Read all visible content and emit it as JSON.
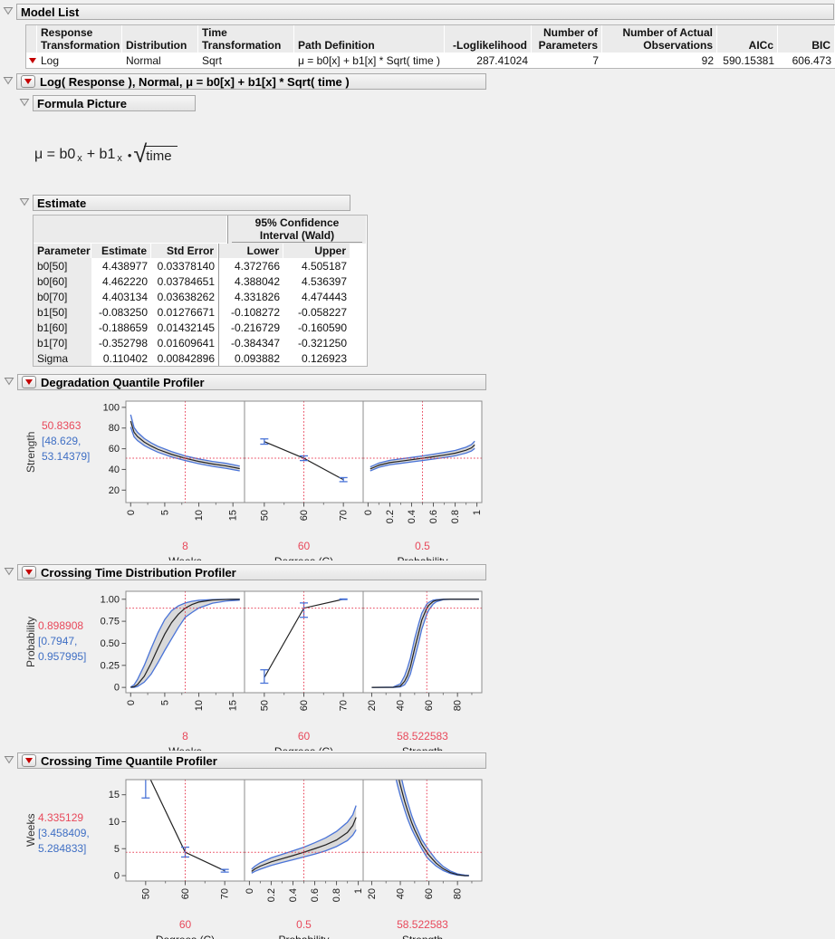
{
  "colors": {
    "accent_red": "#e8364e",
    "text_red": "#e8495b",
    "text_blue": "#3f6fc4",
    "band_edge_blue": "#4a74d8",
    "band_fill": "#d9d9d9",
    "curve_black": "#222222",
    "panel_border": "#8c8c8c"
  },
  "icons": {
    "disclosure": "open-triangle-down",
    "menu_button": "red-triangle-menu"
  },
  "model_list": {
    "title": "Model List",
    "columns": [
      {
        "l1": "Response",
        "l2": "Transformation"
      },
      {
        "l1": "",
        "l2": "Distribution"
      },
      {
        "l1": "Time",
        "l2": "Transformation"
      },
      {
        "l1": "",
        "l2": "Path Definition"
      },
      {
        "l1": "",
        "l2": "-Loglikelihood"
      },
      {
        "l1": "Number of",
        "l2": "Parameters"
      },
      {
        "l1": "Number of Actual",
        "l2": "Observations"
      },
      {
        "l1": "",
        "l2": "AICc"
      },
      {
        "l1": "",
        "l2": "BIC"
      }
    ],
    "row": [
      "Log",
      "Normal",
      "Sqrt",
      "μ = b0[x] + b1[x] * Sqrt( time )",
      "287.41024",
      "7",
      "92",
      "590.15381",
      "606.473"
    ]
  },
  "model_section": {
    "title": "Log( Response ), Normal, μ = b0[x] + b1[x] * Sqrt( time )"
  },
  "formula_picture": {
    "title": "Formula Picture",
    "formula": {
      "mu_eq": "μ = b0",
      "sub_x1": "x",
      "plus_b1": "+ b1",
      "sub_x2": "x",
      "dot": "•",
      "radical": "√",
      "radicand": "time"
    }
  },
  "estimate": {
    "title": "Estimate",
    "ci_header_line1": "95% Confidence",
    "ci_header_line2": "Interval (Wald)",
    "columns": [
      "Parameter",
      "Estimate",
      "Std Error",
      "Lower",
      "Upper"
    ],
    "rows": [
      [
        "b0[50]",
        "4.438977",
        "0.03378140",
        "4.372766",
        "4.505187"
      ],
      [
        "b0[60]",
        "4.462220",
        "0.03784651",
        "4.388042",
        "4.536397"
      ],
      [
        "b0[70]",
        "4.403134",
        "0.03638262",
        "4.331826",
        "4.474443"
      ],
      [
        "b1[50]",
        "-0.083250",
        "0.01276671",
        "-0.108272",
        "-0.058227"
      ],
      [
        "b1[60]",
        "-0.188659",
        "0.01432145",
        "-0.216729",
        "-0.160590"
      ],
      [
        "b1[70]",
        "-0.352798",
        "0.01609641",
        "-0.384347",
        "-0.321250"
      ],
      [
        "Sigma",
        "0.110402",
        "0.00842896",
        "0.093882",
        "0.126923"
      ]
    ]
  },
  "chart_data": [
    {
      "type": "line",
      "title": "Degradation Quantile Profiler",
      "ylabel": "Strength",
      "current_y": "50.8363",
      "ci_line1": "[48.629,",
      "ci_line2": "53.14379]",
      "y_value": 50.8363,
      "ylim": [
        8,
        106
      ],
      "ytick_values": [
        100,
        80,
        60,
        40,
        20
      ],
      "ytick_labels": [
        "100",
        "80",
        "60",
        "40",
        "20"
      ],
      "panels": [
        {
          "xlabel": "Weeks",
          "current_x": "8",
          "x_value": 8,
          "xlim": [
            -0.7,
            16.7
          ],
          "xtick_values": [
            0,
            5,
            10,
            15
          ],
          "xtick_labels": [
            "0",
            "5",
            "10",
            "15"
          ],
          "minor_ticks": [
            2.5,
            7.5,
            12.5
          ],
          "band": {
            "x": [
              0,
              0.5,
              1,
              2,
              3,
              4,
              6,
              8,
              10,
              12,
              14,
              16
            ],
            "center": [
              86.7,
              75.9,
              71.8,
              66.4,
              62.6,
              59.4,
              54.6,
              50.8,
              47.7,
              45.3,
              43.4,
              40.8
            ],
            "lower": [
              80.9,
              71.5,
              67.9,
              63.1,
              59.7,
              56.6,
              52.1,
              48.6,
              45.5,
              43.0,
              41.0,
              38.6
            ],
            "upper": [
              92.9,
              80.5,
              75.9,
              69.9,
              65.7,
              62.3,
              57.2,
              53.1,
              50.1,
              47.7,
              45.9,
              43.2
            ]
          }
        },
        {
          "xlabel": "Degrees (C)",
          "current_x": "60",
          "x_value": 60,
          "xlim": [
            45,
            75
          ],
          "xtick_values": [
            50,
            60,
            70
          ],
          "xtick_labels": [
            "50",
            "60",
            "70"
          ],
          "minor_ticks": [
            55,
            65
          ],
          "points": {
            "x": [
              50,
              60,
              70
            ],
            "y": [
              66.9,
              50.8,
              30.1
            ],
            "lo": [
              64.4,
              48.6,
              28.2
            ],
            "hi": [
              69.5,
              53.1,
              32.1
            ]
          }
        },
        {
          "xlabel": "Probability",
          "current_x": "0.5",
          "x_value": 0.5,
          "xlim": [
            -0.045,
            1.045
          ],
          "xtick_values": [
            0,
            0.2,
            0.4,
            0.6,
            0.8,
            1
          ],
          "xtick_labels": [
            "0",
            "0.2",
            "0.4",
            "0.6",
            "0.8",
            "1"
          ],
          "minor_ticks": [
            0.1,
            0.3,
            0.5,
            0.7,
            0.9
          ],
          "band": {
            "x": [
              0.02,
              0.05,
              0.1,
              0.2,
              0.3,
              0.4,
              0.5,
              0.6,
              0.7,
              0.8,
              0.9,
              0.95,
              0.98
            ],
            "center": [
              40.5,
              41.8,
              44.1,
              46.6,
              48.0,
              49.4,
              50.8,
              52.3,
              53.9,
              55.7,
              58.6,
              60.8,
              63.7
            ],
            "lower": [
              38.6,
              39.9,
              42.1,
              44.5,
              45.9,
              47.3,
              48.6,
              50.0,
              51.5,
              53.2,
              55.8,
              57.8,
              60.3
            ],
            "upper": [
              42.5,
              43.8,
              46.2,
              48.8,
              50.2,
              51.6,
              53.1,
              54.7,
              56.4,
              58.3,
              61.5,
              64.0,
              67.3
            ]
          }
        }
      ]
    },
    {
      "type": "line",
      "title": "Crossing Time Distribution Profiler",
      "ylabel": "Probability",
      "current_y": "0.898908",
      "ci_line1": "[0.7947,",
      "ci_line2": "0.957995]",
      "y_value": 0.898908,
      "ylim": [
        -0.06,
        1.09
      ],
      "ytick_values": [
        1.0,
        0.75,
        0.5,
        0.25,
        0
      ],
      "ytick_labels": [
        "1.00",
        "0.75",
        "0.50",
        "0.25",
        "0"
      ],
      "panels": [
        {
          "xlabel": "Weeks",
          "current_x": "8",
          "x_value": 8,
          "xlim": [
            -0.7,
            16.7
          ],
          "xtick_values": [
            0,
            5,
            10,
            15
          ],
          "xtick_labels": [
            "0",
            "5",
            "10",
            "15"
          ],
          "minor_ticks": [
            2.5,
            7.5,
            12.5
          ],
          "band": {
            "x": [
              0,
              0.5,
              1,
              2,
              3,
              4,
              5,
              6,
              7,
              8,
              9,
              10,
              12,
              14,
              16
            ],
            "center": [
              0.001,
              0.008,
              0.032,
              0.127,
              0.275,
              0.444,
              0.604,
              0.735,
              0.83,
              0.899,
              0.94,
              0.968,
              0.991,
              0.997,
              0.999
            ],
            "lower": [
              0,
              0.001,
              0.01,
              0.06,
              0.15,
              0.28,
              0.42,
              0.55,
              0.68,
              0.795,
              0.85,
              0.9,
              0.955,
              0.98,
              0.99
            ],
            "upper": [
              0.004,
              0.03,
              0.09,
              0.25,
              0.44,
              0.62,
              0.77,
              0.87,
              0.925,
              0.958,
              0.977,
              0.988,
              0.996,
              0.999,
              1.0
            ]
          }
        },
        {
          "xlabel": "Degrees (C)",
          "current_x": "60",
          "x_value": 60,
          "xlim": [
            45,
            75
          ],
          "xtick_values": [
            50,
            60,
            70
          ],
          "xtick_labels": [
            "50",
            "60",
            "70"
          ],
          "minor_ticks": [
            55,
            65
          ],
          "points": {
            "x": [
              50,
              60,
              70
            ],
            "y": [
              0.112,
              0.899,
              1.0
            ],
            "lo": [
              0.048,
              0.795,
              0.996
            ],
            "hi": [
              0.2,
              0.958,
              1.003
            ]
          }
        },
        {
          "xlabel": "Strength",
          "current_x": "58.522583",
          "x_value": 58.522583,
          "xlim": [
            14,
            97
          ],
          "xtick_values": [
            20,
            40,
            60,
            80
          ],
          "xtick_labels": [
            "20",
            "40",
            "60",
            "80"
          ],
          "minor_ticks": [
            30,
            50,
            70,
            90
          ],
          "band": {
            "x": [
              20,
              35,
              40,
              43,
              45,
              47,
              50,
              53,
              55,
              58.5,
              60,
              63,
              65,
              70,
              75,
              95
            ],
            "center": [
              0,
              0.001,
              0.015,
              0.07,
              0.135,
              0.23,
              0.44,
              0.63,
              0.762,
              0.899,
              0.933,
              0.975,
              0.987,
              0.998,
              1.0,
              1.0
            ],
            "lower": [
              0,
              0,
              0.005,
              0.03,
              0.08,
              0.15,
              0.33,
              0.52,
              0.66,
              0.83,
              0.88,
              0.945,
              0.97,
              0.995,
              0.999,
              1.0
            ],
            "upper": [
              0,
              0.004,
              0.04,
              0.13,
              0.22,
              0.33,
              0.55,
              0.73,
              0.84,
              0.945,
              0.965,
              0.99,
              0.995,
              0.9995,
              1.0,
              1.0
            ]
          }
        }
      ]
    },
    {
      "type": "line",
      "title": "Crossing Time Quantile Profiler",
      "ylabel": "Weeks",
      "current_y": "4.335129",
      "ci_line1": "[3.458409,",
      "ci_line2": "5.284833]",
      "y_value": 4.335129,
      "ylim": [
        -1,
        17.8
      ],
      "ytick_values": [
        15,
        10,
        5,
        0
      ],
      "ytick_labels": [
        "15",
        "10",
        "5",
        "0"
      ],
      "panels": [
        {
          "xlabel": "Degrees (C)",
          "current_x": "60",
          "x_value": 60,
          "xlim": [
            45,
            75
          ],
          "xtick_values": [
            50,
            60,
            70
          ],
          "xtick_labels": [
            "50",
            "60",
            "70"
          ],
          "minor_ticks": [
            55,
            65
          ],
          "points": {
            "x": [
              50,
              60,
              70
            ],
            "y": [
              19.7,
              4.34,
              0.9
            ],
            "lo": [
              14.4,
              3.46,
              0.66
            ],
            "hi": [
              27,
              5.28,
              1.16
            ]
          }
        },
        {
          "xlabel": "Probability",
          "current_x": "0.5",
          "x_value": 0.5,
          "xlim": [
            -0.045,
            1.045
          ],
          "xtick_values": [
            0,
            0.2,
            0.4,
            0.6,
            0.8,
            1
          ],
          "xtick_labels": [
            "0",
            "0.2",
            "0.4",
            "0.6",
            "0.8",
            "1"
          ],
          "minor_ticks": [
            0.1,
            0.3,
            0.5,
            0.7,
            0.9
          ],
          "band": {
            "x": [
              0.02,
              0.05,
              0.1,
              0.2,
              0.3,
              0.4,
              0.5,
              0.6,
              0.7,
              0.8,
              0.9,
              0.95,
              0.98
            ],
            "center": [
              0.78,
              1.25,
              1.77,
              2.55,
              3.15,
              3.72,
              4.34,
              5.0,
              5.7,
              6.6,
              8.0,
              9.3,
              10.8
            ],
            "lower": [
              0.45,
              0.8,
              1.2,
              1.9,
              2.45,
              2.95,
              3.46,
              4.0,
              4.6,
              5.4,
              6.5,
              7.5,
              8.5
            ],
            "upper": [
              1.2,
              1.75,
              2.4,
              3.3,
              3.95,
              4.6,
              5.28,
              6.1,
              7.0,
              8.2,
              9.9,
              11.3,
              13.0
            ]
          }
        },
        {
          "xlabel": "Strength",
          "current_x": "58.522583",
          "x_value": 58.522583,
          "xlim": [
            14,
            97
          ],
          "xtick_values": [
            20,
            40,
            60,
            80
          ],
          "xtick_labels": [
            "20",
            "40",
            "60",
            "80"
          ],
          "minor_ticks": [
            30,
            50,
            70,
            90
          ],
          "band": {
            "x": [
              36,
              38,
              40,
              43,
              45,
              48,
              50,
              55,
              58.5,
              60,
              65,
              70,
              75,
              80,
              85,
              88
            ],
            "center": [
              21.7,
              19.1,
              16.8,
              13.8,
              12.1,
              9.8,
              8.5,
              5.8,
              4.34,
              3.8,
              2.33,
              1.28,
              0.59,
              0.18,
              0.01,
              0
            ],
            "lower": [
              19.0,
              16.8,
              14.8,
              12.2,
              10.6,
              8.6,
              7.5,
              5.0,
              3.46,
              3.0,
              1.8,
              0.95,
              0.4,
              0.1,
              0,
              0
            ],
            "upper": [
              24.5,
              21.6,
              19.0,
              15.6,
              13.7,
              11.1,
              9.7,
              6.7,
              5.28,
              4.7,
              2.95,
              1.7,
              0.85,
              0.32,
              0.1,
              0.05
            ]
          }
        }
      ]
    }
  ]
}
